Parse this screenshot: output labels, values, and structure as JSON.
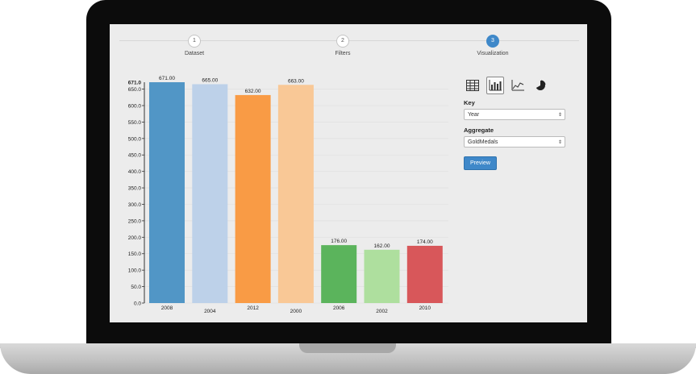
{
  "stepper": {
    "steps": [
      {
        "number": "1",
        "label": "Dataset",
        "active": false
      },
      {
        "number": "2",
        "label": "Filters",
        "active": false
      },
      {
        "number": "3",
        "label": "Visualization",
        "active": true
      }
    ]
  },
  "panel": {
    "viz_types": [
      {
        "icon": "table-icon",
        "selected": false
      },
      {
        "icon": "bar-chart-icon",
        "selected": true
      },
      {
        "icon": "line-chart-icon",
        "selected": false
      },
      {
        "icon": "pie-chart-icon",
        "selected": false
      }
    ],
    "key_label": "Key",
    "key_value": "Year",
    "aggregate_label": "Aggregate",
    "aggregate_value": "GoldMedals",
    "preview_label": "Preview"
  },
  "chart_data": {
    "type": "bar",
    "categories": [
      "2008",
      "2004",
      "2012",
      "2000",
      "2006",
      "2002",
      "2010"
    ],
    "values": [
      671.0,
      665.0,
      632.0,
      663.0,
      176.0,
      162.0,
      174.0
    ],
    "value_labels": [
      "671.00",
      "665.00",
      "632.00",
      "663.00",
      "176.00",
      "162.00",
      "174.00"
    ],
    "colors": [
      "#5196c6",
      "#bdd1e9",
      "#f99b45",
      "#f9c896",
      "#5bb45c",
      "#aedf9e",
      "#d8575a"
    ],
    "y_ticks": [
      "0.0",
      "50.0",
      "100.0",
      "150.0",
      "200.0",
      "250.0",
      "300.0",
      "350.0",
      "400.0",
      "450.0",
      "500.0",
      "550.0",
      "600.0",
      "650.0"
    ],
    "y_max_label": "671.0",
    "ylim": [
      0,
      671
    ],
    "grid": true,
    "title": "",
    "xlabel": "",
    "ylabel": ""
  }
}
